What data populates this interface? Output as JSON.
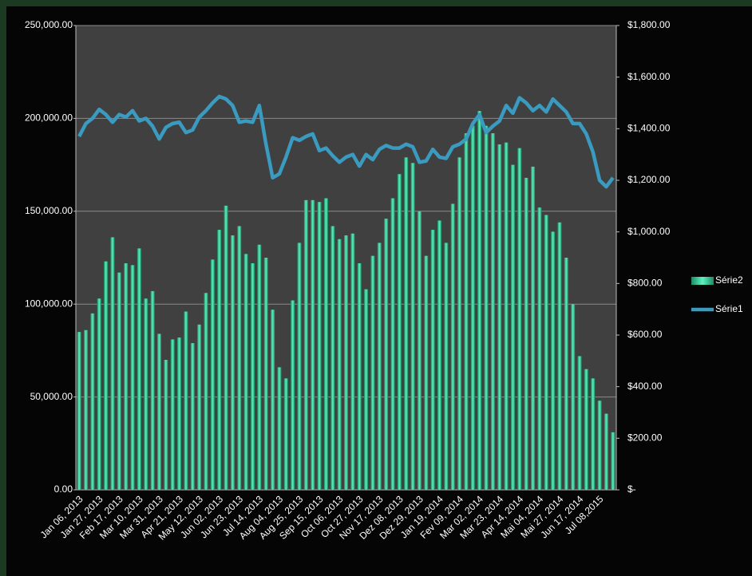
{
  "chart_data": {
    "type": "bar",
    "categories": [
      "Jan 06, 2013",
      null,
      null,
      "Jan 27, 2013",
      null,
      null,
      "Feb 17, 2013",
      null,
      null,
      "Mar 10, 2013",
      null,
      null,
      "Mar 31, 2013",
      null,
      null,
      "Apr 21, 2013",
      null,
      null,
      "May 12, 2013",
      null,
      null,
      "Jun 02, 2013",
      null,
      null,
      "Jun 23, 2013",
      null,
      null,
      "Jul 14, 2013",
      null,
      null,
      "Aug 04, 2013",
      null,
      null,
      "Aug 25, 2013",
      null,
      null,
      "Sep 15, 2013",
      null,
      null,
      "Oct 06, 2013",
      null,
      null,
      "Oct 27, 2013",
      null,
      null,
      "Nov 17, 2013",
      null,
      null,
      "Dez 08, 2013",
      null,
      null,
      "Dez 29, 2013",
      null,
      null,
      "Jan 19, 2014",
      null,
      null,
      "Fev 09, 2014",
      null,
      null,
      "Mar 02, 2014",
      null,
      null,
      "Mar 23, 2014",
      null,
      null,
      "Apr 14, 2014",
      null,
      null,
      "Mai 04, 2014",
      null,
      null,
      "Mai 27, 2014",
      null,
      null,
      "Jun 17, 2014",
      null,
      null,
      "Jul 08,2015",
      null,
      null
    ],
    "series": [
      {
        "name": "Série2",
        "type": "bar",
        "color": "#2fd39a",
        "values": [
          85000,
          86000,
          95000,
          103000,
          123000,
          136000,
          117000,
          122000,
          121000,
          130000,
          103000,
          107000,
          84000,
          70000,
          81000,
          82000,
          96000,
          79000,
          89000,
          106000,
          124000,
          140000,
          153000,
          137000,
          142000,
          127000,
          122000,
          132000,
          125000,
          97000,
          66000,
          60000,
          102000,
          133000,
          156000,
          156000,
          155000,
          157000,
          142000,
          135000,
          137000,
          138000,
          122000,
          108000,
          126000,
          133000,
          146000,
          157000,
          170000,
          179000,
          176000,
          150000,
          126000,
          140000,
          145000,
          133000,
          154000,
          179000,
          192000,
          196000,
          204000,
          196000,
          192000,
          186000,
          187000,
          175000,
          184000,
          168000,
          174000,
          152000,
          148000,
          139000,
          144000,
          125000,
          100000,
          72000,
          65000,
          60000,
          48000,
          41000,
          31000
        ]
      },
      {
        "name": "Série1",
        "type": "line",
        "axis": "y2",
        "color": "#3a9ac0",
        "values": [
          1370,
          1420,
          1440,
          1475,
          1455,
          1425,
          1455,
          1445,
          1470,
          1430,
          1440,
          1410,
          1360,
          1405,
          1420,
          1425,
          1385,
          1395,
          1445,
          1470,
          1500,
          1525,
          1515,
          1490,
          1425,
          1430,
          1425,
          1490,
          1340,
          1210,
          1225,
          1290,
          1365,
          1355,
          1370,
          1380,
          1315,
          1325,
          1295,
          1270,
          1290,
          1300,
          1255,
          1300,
          1280,
          1320,
          1335,
          1325,
          1325,
          1340,
          1330,
          1270,
          1275,
          1320,
          1290,
          1285,
          1330,
          1340,
          1360,
          1420,
          1455,
          1385,
          1410,
          1430,
          1490,
          1460,
          1520,
          1500,
          1470,
          1490,
          1465,
          1515,
          1490,
          1465,
          1420,
          1420,
          1380,
          1310,
          1200,
          1175,
          1210
        ]
      }
    ],
    "ylim": [
      0,
      250000
    ],
    "yticks": [
      {
        "value": 0,
        "label": "0.00"
      },
      {
        "value": 50000,
        "label": "50,000.00"
      },
      {
        "value": 100000,
        "label": "100,000.00"
      },
      {
        "value": 150000,
        "label": "150,000.00"
      },
      {
        "value": 200000,
        "label": "200,000.00"
      },
      {
        "value": 250000,
        "label": "250,000.00"
      }
    ],
    "y2lim": [
      0,
      1800
    ],
    "y2ticks": [
      {
        "value": 0,
        "label": "$-"
      },
      {
        "value": 200,
        "label": "$200.00"
      },
      {
        "value": 400,
        "label": "$400.00"
      },
      {
        "value": 600,
        "label": "$600.00"
      },
      {
        "value": 800,
        "label": "$800.00"
      },
      {
        "value": 1000,
        "label": "$1,000.00"
      },
      {
        "value": 1200,
        "label": "$1,200.00"
      },
      {
        "value": 1400,
        "label": "$1,400.00"
      },
      {
        "value": 1600,
        "label": "$1,600.00"
      },
      {
        "value": 1800,
        "label": "$1,800.00"
      }
    ],
    "grid": true,
    "legend": "right"
  }
}
